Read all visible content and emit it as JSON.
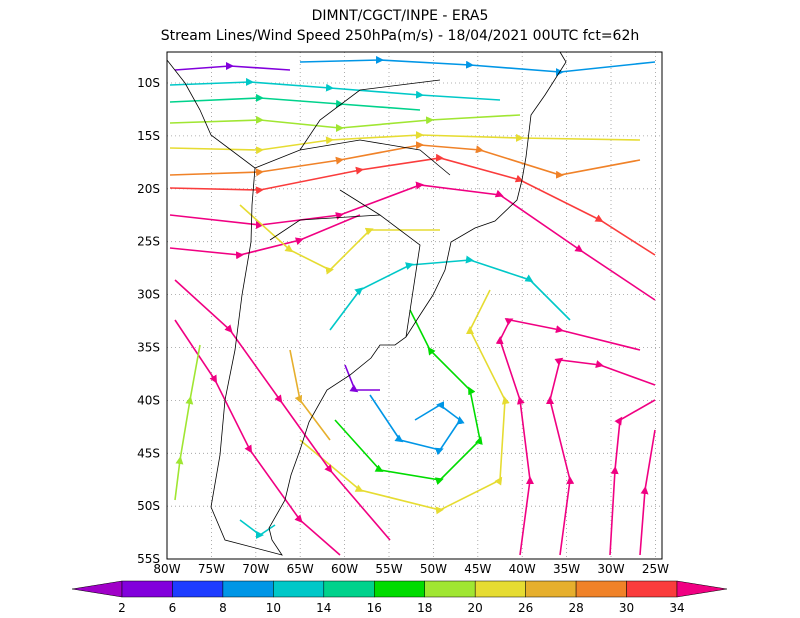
{
  "header": {
    "title": "DIMNT/CGCT/INPE  -  ERA5",
    "subtitle": "Stream Lines/Wind Speed 250hPa(m/s)  -  18/04/2021 00UTC fct=62h"
  },
  "map": {
    "lat_labels": [
      "10S",
      "15S",
      "20S",
      "25S",
      "30S",
      "35S",
      "40S",
      "45S",
      "50S",
      "55S"
    ],
    "lon_labels": [
      "80W",
      "75W",
      "70W",
      "65W",
      "60W",
      "55W",
      "50W",
      "45W",
      "40W",
      "35W",
      "30W",
      "25W"
    ]
  },
  "colorbar": {
    "labels": [
      "2",
      "6",
      "8",
      "10",
      "14",
      "16",
      "18",
      "20",
      "26",
      "28",
      "30",
      "34"
    ],
    "colors": [
      "#a000c8",
      "#8200dc",
      "#1e3cff",
      "#0096e6",
      "#00c8c8",
      "#00d28c",
      "#00dc00",
      "#a0e632",
      "#e6dc32",
      "#e6af2d",
      "#f08228",
      "#fa3c3c",
      "#f00082"
    ]
  }
}
